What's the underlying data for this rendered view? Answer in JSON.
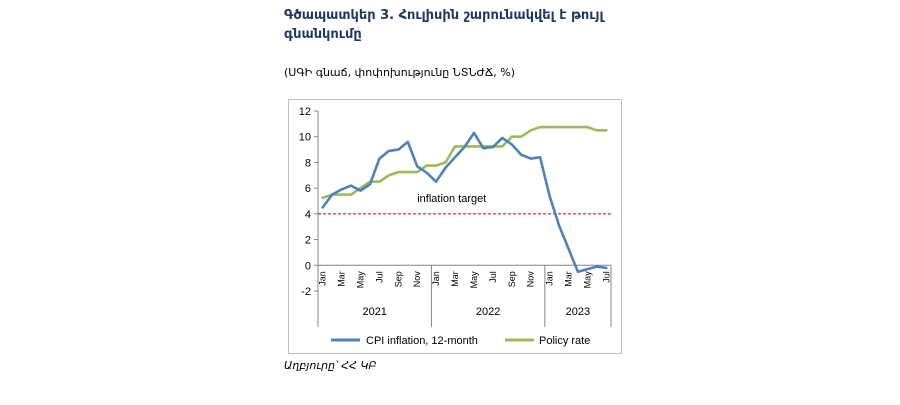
{
  "header": {
    "title": "Գծապատկեր 3. Հուլիսին շարունակվել է թույլ գնանկումը",
    "subtitle": "(ՍԳԻ գնաճ, փոփոխությունը ՆՏՆԺՃ, %)"
  },
  "footer": {
    "source": "Աղբյուրը՝ ՀՀ ԿԲ"
  },
  "chart_data": {
    "type": "line",
    "ylim": [
      -2,
      12
    ],
    "yticks": [
      "12",
      "10",
      "8",
      "6",
      "4",
      "2",
      "0",
      "-2"
    ],
    "x": [
      "Jan",
      "Feb",
      "Mar",
      "Apr",
      "May",
      "Jun",
      "Jul",
      "Aug",
      "Sep",
      "Oct",
      "Nov",
      "Dec",
      "Jan",
      "Feb",
      "Mar",
      "Apr",
      "May",
      "Jun",
      "Jul",
      "Aug",
      "Sep",
      "Oct",
      "Nov",
      "Dec",
      "Jan",
      "Feb",
      "Mar",
      "Apr",
      "May",
      "Jun",
      "Jul"
    ],
    "tick_labels": [
      "Jan",
      "Mar",
      "May",
      "Jul",
      "Sep",
      "Nov",
      "Jan",
      "Mar",
      "May",
      "Jul",
      "Sep",
      "Nov",
      "Jan",
      "Mar",
      "May",
      "Jul"
    ],
    "years": [
      "2021",
      "2022",
      "2023"
    ],
    "series": [
      {
        "name": "CPI inflation, 12-month",
        "color": "#4f81bd",
        "values": [
          4.5,
          5.5,
          5.9,
          6.2,
          5.8,
          6.3,
          8.3,
          8.9,
          9.0,
          9.6,
          7.7,
          7.2,
          6.5,
          7.6,
          8.4,
          9.2,
          10.3,
          9.1,
          9.2,
          9.9,
          9.4,
          8.6,
          8.3,
          8.4,
          5.4,
          3.1,
          1.3,
          -0.5,
          -0.3,
          -0.1,
          -0.2
        ]
      },
      {
        "name": "Policy rate",
        "color": "#9bbb59",
        "values": [
          5.25,
          5.5,
          5.5,
          5.5,
          6.0,
          6.5,
          6.5,
          7.0,
          7.25,
          7.25,
          7.25,
          7.75,
          7.75,
          8.0,
          9.25,
          9.25,
          9.25,
          9.25,
          9.25,
          9.25,
          10.0,
          10.0,
          10.5,
          10.75,
          10.75,
          10.75,
          10.75,
          10.75,
          10.75,
          10.5,
          10.5
        ]
      }
    ],
    "reference_line": {
      "value": 4,
      "label": "inflation target",
      "color": "#c00000"
    },
    "grid": false,
    "legend_position": "bottom"
  }
}
